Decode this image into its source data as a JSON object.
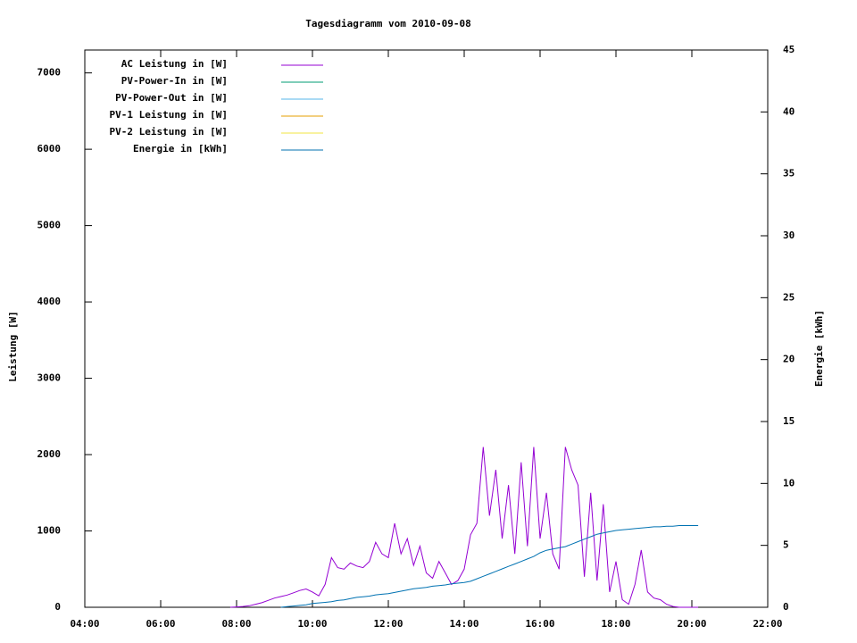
{
  "chart_data": {
    "type": "line",
    "title": "Tagesdiagramm vom 2010-09-08",
    "y_label": "Leistung [W]",
    "y2_label": "Energie [kWh]",
    "legend": "top-left",
    "x": [
      470,
      480,
      490,
      500,
      510,
      520,
      530,
      540,
      550,
      560,
      570,
      580,
      590,
      600,
      610,
      620,
      630,
      640,
      650,
      660,
      670,
      680,
      690,
      700,
      710,
      720,
      730,
      740,
      750,
      760,
      770,
      780,
      790,
      800,
      810,
      820,
      830,
      840,
      850,
      860,
      870,
      880,
      890,
      900,
      910,
      920,
      930,
      940,
      950,
      960,
      970,
      980,
      990,
      1000,
      1010,
      1020,
      1030,
      1040,
      1050,
      1060,
      1070,
      1080,
      1090,
      1100,
      1110,
      1120,
      1130,
      1140,
      1150,
      1160,
      1170,
      1180,
      1190,
      1200,
      1210
    ],
    "xlim": [
      240,
      1320
    ],
    "xticks": [
      {
        "value": 240,
        "label": "04:00"
      },
      {
        "value": 360,
        "label": "06:00"
      },
      {
        "value": 480,
        "label": "08:00"
      },
      {
        "value": 600,
        "label": "10:00"
      },
      {
        "value": 720,
        "label": "12:00"
      },
      {
        "value": 840,
        "label": "14:00"
      },
      {
        "value": 960,
        "label": "16:00"
      },
      {
        "value": 1080,
        "label": "18:00"
      },
      {
        "value": 1200,
        "label": "20:00"
      },
      {
        "value": 1320,
        "label": "22:00"
      }
    ],
    "ylim": [
      0,
      7300
    ],
    "yticks": [
      0,
      1000,
      2000,
      3000,
      4000,
      5000,
      6000,
      7000
    ],
    "y2lim": [
      0,
      45
    ],
    "y2ticks": [
      0,
      5,
      10,
      15,
      20,
      25,
      30,
      35,
      40,
      45
    ],
    "series": [
      {
        "name": "AC Leistung in [W]",
        "color": "#9400d3",
        "values": [
          0,
          5,
          10,
          20,
          40,
          60,
          90,
          120,
          140,
          160,
          190,
          220,
          240,
          200,
          150,
          300,
          650,
          520,
          500,
          580,
          540,
          520,
          600,
          850,
          700,
          650,
          1100,
          700,
          900,
          550,
          800,
          450,
          380,
          600,
          450,
          300,
          350,
          500,
          950,
          1100,
          2100,
          1200,
          1800,
          900,
          1600,
          700,
          1900,
          800,
          2100,
          900,
          1500,
          700,
          500,
          2100,
          1800,
          1600,
          400,
          1500,
          350,
          1350,
          200,
          600,
          100,
          40,
          300,
          750,
          200,
          120,
          100,
          40,
          10,
          0,
          0,
          0,
          0
        ]
      },
      {
        "name": "PV-Power-In in [W]",
        "color": "#009e73",
        "values": [
          null,
          null,
          null,
          null,
          null,
          null,
          null,
          null,
          null,
          null,
          null,
          null,
          null,
          null,
          null,
          null,
          null,
          null,
          null,
          null,
          null,
          null,
          null,
          null,
          null,
          null,
          null,
          null,
          null,
          null,
          null,
          null,
          null,
          null,
          null,
          null,
          null,
          null,
          null,
          null,
          null,
          null,
          null,
          null,
          null,
          null,
          null,
          null,
          null,
          null,
          null,
          null,
          null,
          null,
          null,
          null,
          null,
          null,
          null,
          null,
          null,
          null,
          null,
          null,
          null,
          null,
          null,
          null,
          null,
          null,
          null,
          null,
          null,
          null,
          null
        ]
      },
      {
        "name": "PV-Power-Out in [W]",
        "color": "#56b4e9",
        "values": [
          null,
          null,
          null,
          null,
          null,
          null,
          null,
          null,
          null,
          null,
          null,
          null,
          null,
          null,
          null,
          null,
          null,
          null,
          null,
          null,
          null,
          null,
          null,
          null,
          null,
          null,
          null,
          null,
          null,
          null,
          null,
          null,
          null,
          null,
          null,
          null,
          null,
          null,
          null,
          null,
          null,
          null,
          null,
          null,
          null,
          null,
          null,
          null,
          null,
          null,
          null,
          null,
          null,
          null,
          null,
          null,
          null,
          null,
          null,
          null,
          null,
          null,
          null,
          null,
          null,
          null,
          null,
          null,
          null,
          null,
          null,
          null,
          null,
          null,
          null
        ]
      },
      {
        "name": "PV-1 Leistung in [W]",
        "color": "#e69f00",
        "values": [
          null,
          null,
          null,
          null,
          null,
          null,
          null,
          null,
          null,
          null,
          null,
          null,
          null,
          null,
          null,
          null,
          null,
          null,
          null,
          null,
          null,
          null,
          null,
          null,
          null,
          null,
          null,
          null,
          null,
          null,
          null,
          null,
          null,
          null,
          null,
          null,
          null,
          null,
          null,
          null,
          null,
          null,
          null,
          null,
          null,
          null,
          null,
          null,
          null,
          null,
          null,
          null,
          null,
          null,
          null,
          null,
          null,
          null,
          null,
          null,
          null,
          null,
          null,
          null,
          null,
          null,
          null,
          null,
          null,
          null,
          null,
          null,
          null,
          null,
          null
        ]
      },
      {
        "name": "PV-2 Leistung in [W]",
        "color": "#f0e442",
        "values": [
          null,
          null,
          null,
          null,
          null,
          null,
          null,
          null,
          null,
          null,
          null,
          null,
          null,
          null,
          null,
          null,
          null,
          null,
          null,
          null,
          null,
          null,
          null,
          null,
          null,
          null,
          null,
          null,
          null,
          null,
          null,
          null,
          null,
          null,
          null,
          null,
          null,
          null,
          null,
          null,
          null,
          null,
          null,
          null,
          null,
          null,
          null,
          null,
          null,
          null,
          null,
          null,
          null,
          null,
          null,
          null,
          null,
          null,
          null,
          null,
          null,
          null,
          null,
          null,
          null,
          null,
          null,
          null,
          null,
          null,
          null,
          null,
          null,
          null,
          null
        ]
      },
      {
        "name": "Energie in [kWh]",
        "color": "#0072b2",
        "axis": "y2",
        "values": [
          null,
          null,
          null,
          null,
          null,
          null,
          null,
          null,
          0,
          0.05,
          0.1,
          0.15,
          0.2,
          0.3,
          0.35,
          0.4,
          0.45,
          0.55,
          0.6,
          0.7,
          0.8,
          0.85,
          0.9,
          1.0,
          1.05,
          1.1,
          1.2,
          1.3,
          1.4,
          1.5,
          1.55,
          1.6,
          1.7,
          1.75,
          1.8,
          1.9,
          1.95,
          2.0,
          2.1,
          2.3,
          2.5,
          2.7,
          2.9,
          3.1,
          3.3,
          3.5,
          3.7,
          3.9,
          4.1,
          4.4,
          4.6,
          4.7,
          4.8,
          4.9,
          5.1,
          5.3,
          5.5,
          5.7,
          5.9,
          6.0,
          6.1,
          6.2,
          6.25,
          6.3,
          6.35,
          6.4,
          6.45,
          6.5,
          6.5,
          6.55,
          6.55,
          6.6,
          6.6,
          6.6,
          6.6
        ]
      }
    ]
  }
}
